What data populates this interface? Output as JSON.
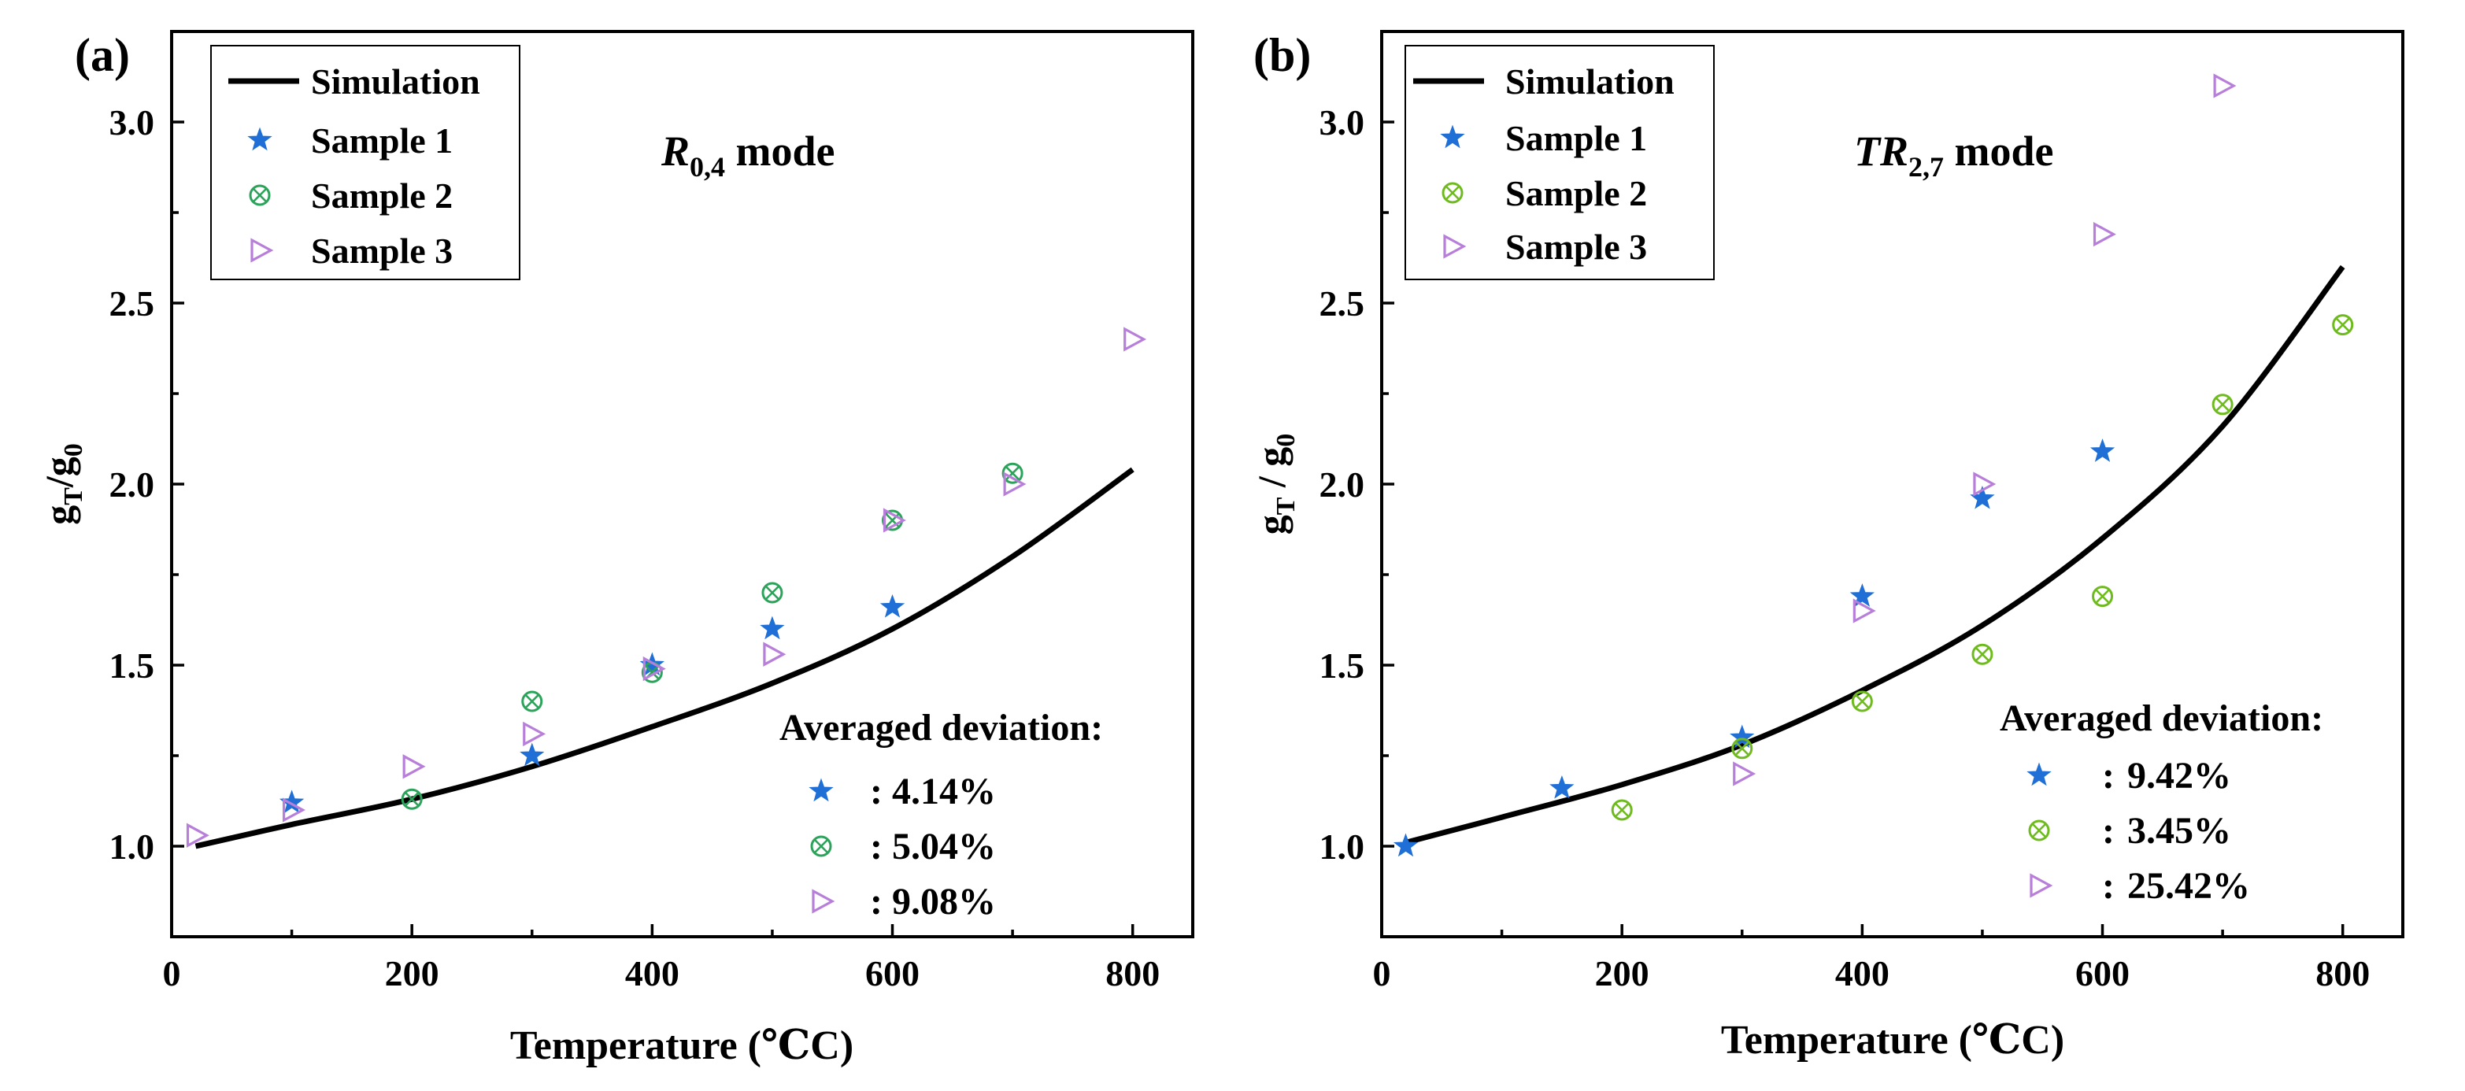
{
  "chart_data": [
    {
      "type": "line+scatter",
      "panel_label": "(a)",
      "mode_label": {
        "main": "R",
        "sub": "0,4",
        "suffix": " mode"
      },
      "xlabel": "Temperature (℃C)",
      "ylabel": {
        "main": "g",
        "sub1": "T",
        "sep": "/g",
        "sub2": "0"
      },
      "xlim": [
        0,
        850
      ],
      "ylim": [
        0.75,
        3.25
      ],
      "xticks": [
        0,
        200,
        400,
        600,
        800
      ],
      "yticks": [
        1.0,
        1.5,
        2.0,
        2.5,
        3.0
      ],
      "xtick_labels": [
        "0",
        "200",
        "400",
        "600",
        "800"
      ],
      "ytick_labels": [
        "1.0",
        "1.5",
        "2.0",
        "2.5",
        "3.0"
      ],
      "legend": {
        "position": "top-left",
        "entries": [
          {
            "key": "simulation",
            "label": "Simulation"
          },
          {
            "key": "s1",
            "label": "Sample 1"
          },
          {
            "key": "s2",
            "label": "Sample 2"
          },
          {
            "key": "s3",
            "label": "Sample 3"
          }
        ]
      },
      "simulation": {
        "name": "Simulation",
        "x": [
          20,
          100,
          200,
          300,
          400,
          500,
          600,
          700,
          800
        ],
        "y": [
          1.0,
          1.06,
          1.13,
          1.22,
          1.33,
          1.45,
          1.6,
          1.8,
          2.04
        ]
      },
      "series": [
        {
          "key": "s1",
          "name": "Sample 1",
          "marker": "star",
          "color": "#1f6fd6",
          "x": [
            100,
            300,
            400,
            500,
            600
          ],
          "y": [
            1.12,
            1.25,
            1.5,
            1.6,
            1.66
          ]
        },
        {
          "key": "s2",
          "name": "Sample 2",
          "marker": "circle-x",
          "color": "#2ca35a",
          "x": [
            200,
            300,
            400,
            500,
            600,
            700
          ],
          "y": [
            1.13,
            1.4,
            1.48,
            1.7,
            1.9,
            2.03
          ]
        },
        {
          "key": "s3",
          "name": "Sample 3",
          "marker": "triangle-right",
          "color": "#b77fd9",
          "x": [
            20,
            100,
            200,
            300,
            400,
            500,
            600,
            700,
            800
          ],
          "y": [
            1.03,
            1.1,
            1.22,
            1.31,
            1.49,
            1.53,
            1.9,
            2.0,
            2.4
          ]
        }
      ],
      "deviation": {
        "title": "Averaged deviation:",
        "sep": ":",
        "entries": [
          {
            "key": "s1",
            "value": "4.14%"
          },
          {
            "key": "s2",
            "value": "5.04%"
          },
          {
            "key": "s3",
            "value": "9.08%"
          }
        ]
      }
    },
    {
      "type": "line+scatter",
      "panel_label": "(b)",
      "mode_label": {
        "main": "TR",
        "sub": "2,7",
        "suffix": " mode"
      },
      "xlabel": "Temperature (℃C)",
      "ylabel": {
        "main": "g",
        "sub1": "T",
        "sep": " / g",
        "sub2": "0"
      },
      "xlim": [
        0,
        850
      ],
      "ylim": [
        0.75,
        3.25
      ],
      "xticks": [
        0,
        200,
        400,
        600,
        800
      ],
      "yticks": [
        1.0,
        1.5,
        2.0,
        2.5,
        3.0
      ],
      "xtick_labels": [
        "0",
        "200",
        "400",
        "600",
        "800"
      ],
      "ytick_labels": [
        "1.0",
        "1.5",
        "2.0",
        "2.5",
        "3.0"
      ],
      "legend": {
        "position": "top-left",
        "entries": [
          {
            "key": "simulation",
            "label": "Simulation"
          },
          {
            "key": "s1",
            "label": "Sample 1"
          },
          {
            "key": "s2",
            "label": "Sample 2"
          },
          {
            "key": "s3",
            "label": "Sample 3"
          }
        ]
      },
      "simulation": {
        "name": "Simulation",
        "x": [
          20,
          100,
          200,
          300,
          400,
          500,
          600,
          700,
          800
        ],
        "y": [
          1.01,
          1.08,
          1.17,
          1.28,
          1.43,
          1.61,
          1.85,
          2.16,
          2.6
        ]
      },
      "series": [
        {
          "key": "s1",
          "name": "Sample 1",
          "marker": "star",
          "color": "#1f6fd6",
          "x": [
            20,
            150,
            300,
            400,
            500,
            600
          ],
          "y": [
            1.0,
            1.16,
            1.3,
            1.69,
            1.96,
            2.09
          ]
        },
        {
          "key": "s2",
          "name": "Sample 2",
          "marker": "circle-x",
          "color": "#6fbb1f",
          "x": [
            200,
            300,
            400,
            500,
            600,
            700,
            800
          ],
          "y": [
            1.1,
            1.27,
            1.4,
            1.53,
            1.69,
            2.22,
            2.44
          ]
        },
        {
          "key": "s3",
          "name": "Sample 3",
          "marker": "triangle-right",
          "color": "#b77fd9",
          "x": [
            300,
            400,
            500,
            600,
            700
          ],
          "y": [
            1.2,
            1.65,
            2.0,
            2.69,
            3.1
          ]
        }
      ],
      "deviation": {
        "title": "Averaged deviation:",
        "sep": ":",
        "entries": [
          {
            "key": "s1",
            "value": "9.42%"
          },
          {
            "key": "s2",
            "value": "3.45%"
          },
          {
            "key": "s3",
            "value": "25.42%"
          }
        ]
      }
    }
  ]
}
